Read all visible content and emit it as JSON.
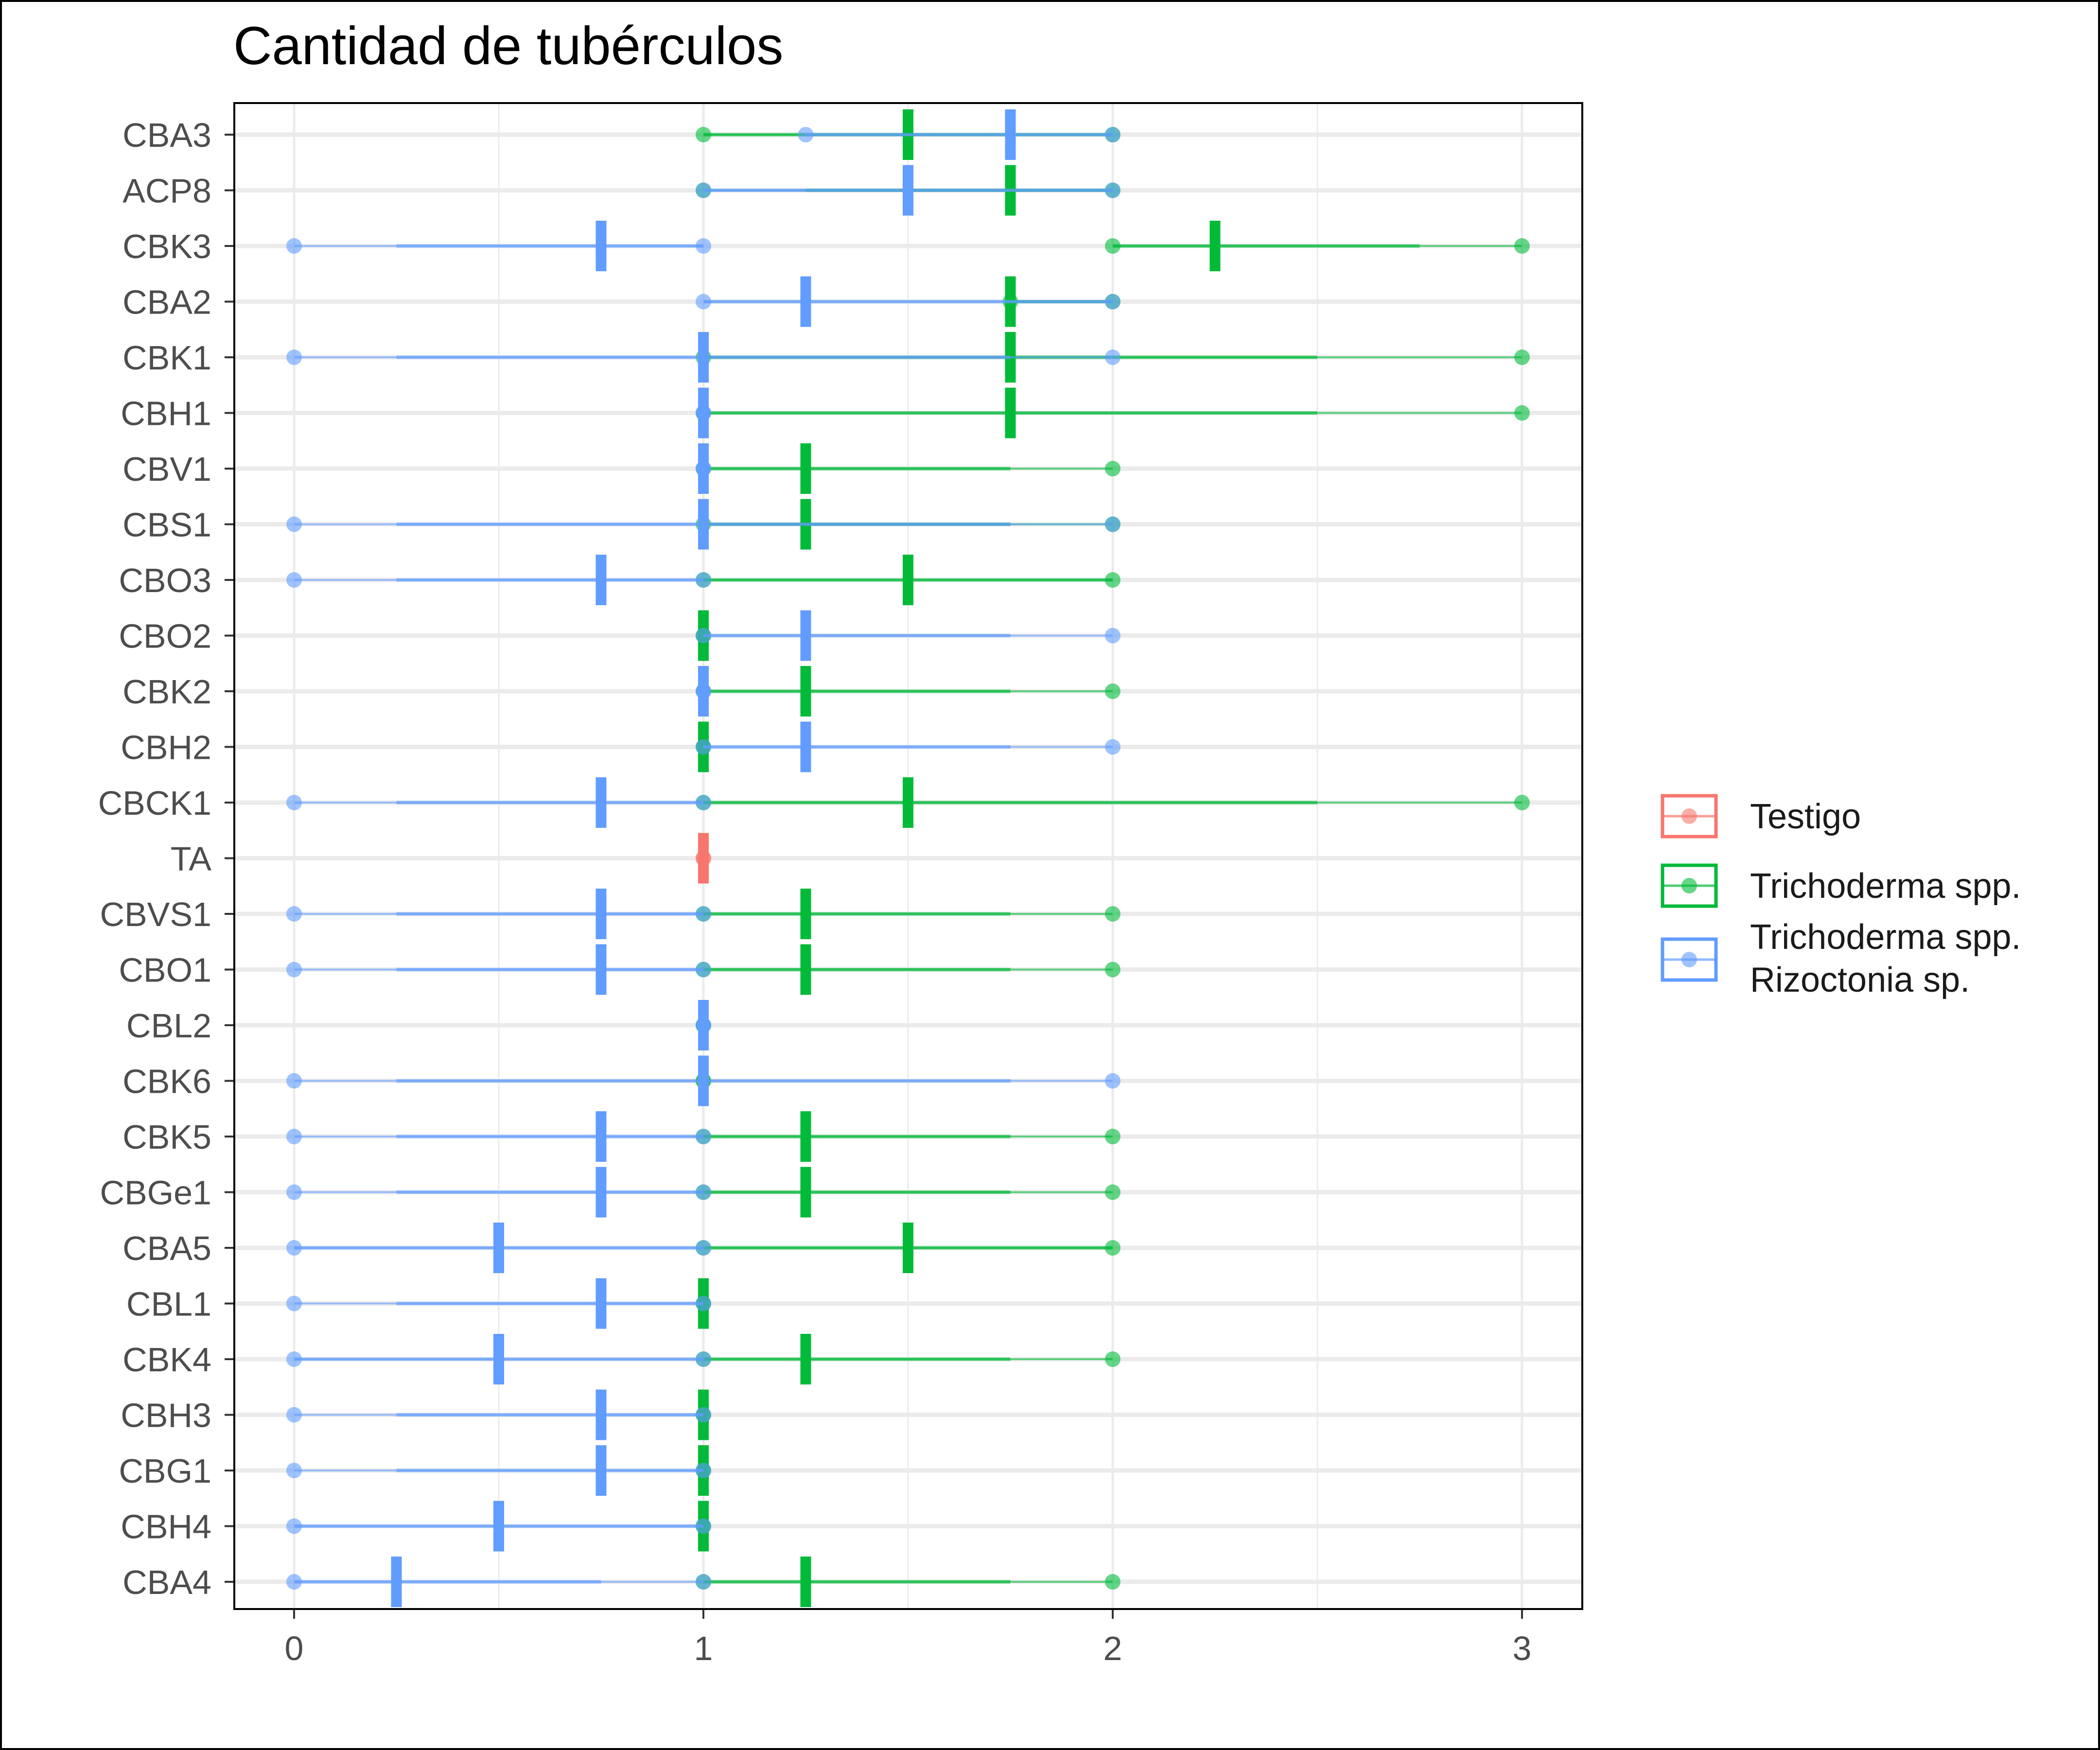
{
  "chart_data": {
    "type": "range",
    "title": "Cantidad de tubérculos",
    "xlabel": "",
    "ylabel": "",
    "xlim": [
      -0.15,
      3.15
    ],
    "x_ticks": [
      0,
      1,
      2,
      3
    ],
    "grid": true,
    "legend_position": "right",
    "categories": [
      "CBA3",
      "ACP8",
      "CBK3",
      "CBA2",
      "CBK1",
      "CBH1",
      "CBV1",
      "CBS1",
      "CBO3",
      "CBO2",
      "CBK2",
      "CBH2",
      "CBCK1",
      "TA",
      "CBVS1",
      "CBO1",
      "CBL2",
      "CBK6",
      "CBK5",
      "CBGe1",
      "CBA5",
      "CBL1",
      "CBK4",
      "CBH3",
      "CBG1",
      "CBH4",
      "CBA4"
    ],
    "series": [
      {
        "name": "Testigo",
        "color": "#F8766D",
        "items": [
          {
            "category": "TA",
            "min": 1,
            "lower": 1,
            "mean": 1,
            "upper": 1,
            "max": 1
          }
        ]
      },
      {
        "name": "Trichoderma spp.",
        "color": "#00BA38",
        "items": [
          {
            "category": "CBA3",
            "min": 1,
            "lower": 1,
            "mean": 1.5,
            "upper": 2,
            "max": 2
          },
          {
            "category": "ACP8",
            "min": 1,
            "lower": 1.25,
            "mean": 1.75,
            "upper": 2,
            "max": 2
          },
          {
            "category": "CBK3",
            "min": 2,
            "lower": 2,
            "mean": 2.25,
            "upper": 2.75,
            "max": 3
          },
          {
            "category": "CBA2",
            "min": 1.75,
            "lower": 1.75,
            "mean": 1.75,
            "upper": 2,
            "max": 2
          },
          {
            "category": "CBK1",
            "min": 1,
            "lower": 1,
            "mean": 1.75,
            "upper": 2.5,
            "max": 3
          },
          {
            "category": "CBH1",
            "min": 1,
            "lower": 1,
            "mean": 1.75,
            "upper": 2.5,
            "max": 3
          },
          {
            "category": "CBV1",
            "min": 1,
            "lower": 1,
            "mean": 1.25,
            "upper": 1.75,
            "max": 2
          },
          {
            "category": "CBS1",
            "min": 1,
            "lower": 1,
            "mean": 1.25,
            "upper": 1.75,
            "max": 2
          },
          {
            "category": "CBO3",
            "min": 1,
            "lower": 1,
            "mean": 1.5,
            "upper": 2,
            "max": 2
          },
          {
            "category": "CBO2",
            "min": 1,
            "lower": 1,
            "mean": 1,
            "upper": 1,
            "max": 1
          },
          {
            "category": "CBK2",
            "min": 1,
            "lower": 1,
            "mean": 1.25,
            "upper": 1.75,
            "max": 2
          },
          {
            "category": "CBH2",
            "min": 1,
            "lower": 1,
            "mean": 1,
            "upper": 1,
            "max": 1
          },
          {
            "category": "CBCK1",
            "min": 1,
            "lower": 1,
            "mean": 1.5,
            "upper": 2.5,
            "max": 3
          },
          {
            "category": "CBVS1",
            "min": 1,
            "lower": 1,
            "mean": 1.25,
            "upper": 1.75,
            "max": 2
          },
          {
            "category": "CBO1",
            "min": 1,
            "lower": 1,
            "mean": 1.25,
            "upper": 1.75,
            "max": 2
          },
          {
            "category": "CBL2",
            "min": 1,
            "lower": 1,
            "mean": 1,
            "upper": 1,
            "max": 1
          },
          {
            "category": "CBK6",
            "min": 1,
            "lower": 1,
            "mean": 1,
            "upper": 1,
            "max": 1
          },
          {
            "category": "CBK5",
            "min": 1,
            "lower": 1,
            "mean": 1.25,
            "upper": 1.75,
            "max": 2
          },
          {
            "category": "CBGe1",
            "min": 1,
            "lower": 1,
            "mean": 1.25,
            "upper": 1.75,
            "max": 2
          },
          {
            "category": "CBA5",
            "min": 1,
            "lower": 1,
            "mean": 1.5,
            "upper": 2,
            "max": 2
          },
          {
            "category": "CBL1",
            "min": 1,
            "lower": 1,
            "mean": 1,
            "upper": 1,
            "max": 1
          },
          {
            "category": "CBK4",
            "min": 1,
            "lower": 1,
            "mean": 1.25,
            "upper": 1.75,
            "max": 2
          },
          {
            "category": "CBH3",
            "min": 1,
            "lower": 1,
            "mean": 1,
            "upper": 1,
            "max": 1
          },
          {
            "category": "CBG1",
            "min": 1,
            "lower": 1,
            "mean": 1,
            "upper": 1,
            "max": 1
          },
          {
            "category": "CBH4",
            "min": 1,
            "lower": 1,
            "mean": 1,
            "upper": 1,
            "max": 1
          },
          {
            "category": "CBA4",
            "min": 1,
            "lower": 1,
            "mean": 1.25,
            "upper": 1.75,
            "max": 2
          }
        ]
      },
      {
        "name": "Trichoderma spp.\nRizoctonia sp.",
        "color": "#619CFF",
        "items": [
          {
            "category": "CBA3",
            "min": 1.25,
            "lower": 1.25,
            "mean": 1.75,
            "upper": 2,
            "max": 2
          },
          {
            "category": "ACP8",
            "min": 1,
            "lower": 1,
            "mean": 1.5,
            "upper": 2,
            "max": 2
          },
          {
            "category": "CBK3",
            "min": 0,
            "lower": 0.25,
            "mean": 0.75,
            "upper": 1,
            "max": 1
          },
          {
            "category": "CBA2",
            "min": 1,
            "lower": 1,
            "mean": 1.25,
            "upper": 2,
            "max": 2
          },
          {
            "category": "CBK1",
            "min": 0,
            "lower": 0.25,
            "mean": 1,
            "upper": 1.75,
            "max": 2
          },
          {
            "category": "CBH1",
            "min": 1,
            "lower": 1,
            "mean": 1,
            "upper": 1,
            "max": 1
          },
          {
            "category": "CBV1",
            "min": 1,
            "lower": 1,
            "mean": 1,
            "upper": 1,
            "max": 1
          },
          {
            "category": "CBS1",
            "min": 0,
            "lower": 0.25,
            "mean": 1,
            "upper": 1.75,
            "max": 2
          },
          {
            "category": "CBO3",
            "min": 0,
            "lower": 0.25,
            "mean": 0.75,
            "upper": 1,
            "max": 1
          },
          {
            "category": "CBO2",
            "min": 1,
            "lower": 1,
            "mean": 1.25,
            "upper": 1.75,
            "max": 2
          },
          {
            "category": "CBK2",
            "min": 1,
            "lower": 1,
            "mean": 1,
            "upper": 1,
            "max": 1
          },
          {
            "category": "CBH2",
            "min": 1,
            "lower": 1,
            "mean": 1.25,
            "upper": 1.75,
            "max": 2
          },
          {
            "category": "CBCK1",
            "min": 0,
            "lower": 0.25,
            "mean": 0.75,
            "upper": 1,
            "max": 1
          },
          {
            "category": "CBVS1",
            "min": 0,
            "lower": 0.25,
            "mean": 0.75,
            "upper": 1,
            "max": 1
          },
          {
            "category": "CBO1",
            "min": 0,
            "lower": 0.25,
            "mean": 0.75,
            "upper": 1,
            "max": 1
          },
          {
            "category": "CBL2",
            "min": 1,
            "lower": 1,
            "mean": 1,
            "upper": 1,
            "max": 1
          },
          {
            "category": "CBK6",
            "min": 0,
            "lower": 0.25,
            "mean": 1,
            "upper": 1.75,
            "max": 2
          },
          {
            "category": "CBK5",
            "min": 0,
            "lower": 0.25,
            "mean": 0.75,
            "upper": 1,
            "max": 1
          },
          {
            "category": "CBGe1",
            "min": 0,
            "lower": 0.25,
            "mean": 0.75,
            "upper": 1,
            "max": 1
          },
          {
            "category": "CBA5",
            "min": 0,
            "lower": 0,
            "mean": 0.5,
            "upper": 1,
            "max": 1
          },
          {
            "category": "CBL1",
            "min": 0,
            "lower": 0.25,
            "mean": 0.75,
            "upper": 1,
            "max": 1
          },
          {
            "category": "CBK4",
            "min": 0,
            "lower": 0,
            "mean": 0.5,
            "upper": 1,
            "max": 1
          },
          {
            "category": "CBH3",
            "min": 0,
            "lower": 0.25,
            "mean": 0.75,
            "upper": 1,
            "max": 1
          },
          {
            "category": "CBG1",
            "min": 0,
            "lower": 0.25,
            "mean": 0.75,
            "upper": 1,
            "max": 1
          },
          {
            "category": "CBH4",
            "min": 0,
            "lower": 0,
            "mean": 0.5,
            "upper": 1,
            "max": 1
          },
          {
            "category": "CBA4",
            "min": 0,
            "lower": 0,
            "mean": 0.25,
            "upper": 0.75,
            "max": 1
          }
        ]
      }
    ]
  }
}
